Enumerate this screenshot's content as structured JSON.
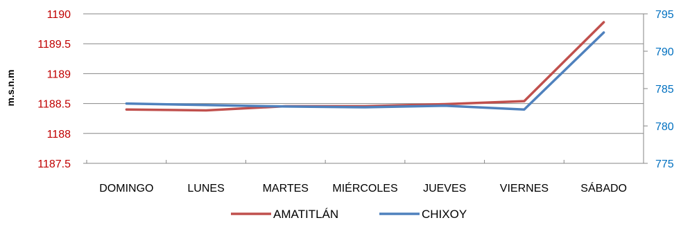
{
  "chart_data": {
    "type": "line",
    "categories": [
      "DOMINGO",
      "LUNES",
      "MARTES",
      "MIÉRCOLES",
      "JUEVES",
      "VIERNES",
      "SÁBADO"
    ],
    "ylabel": "m.s.n.m",
    "y_left": {
      "ticks": [
        "1187.5",
        "1188",
        "1188.5",
        "1189",
        "1189.5",
        "1190"
      ],
      "min": 1187.5,
      "max": 1190,
      "color": "#c00000"
    },
    "y_right": {
      "ticks": [
        "775",
        "780",
        "785",
        "790",
        "795"
      ],
      "min": 775,
      "max": 795,
      "color": "#0070c0"
    },
    "grid": true,
    "legend_position": "bottom",
    "series": [
      {
        "name": "AMATITLÁN",
        "axis": "left",
        "color": "#c0504d",
        "values": [
          1188.4,
          1188.385,
          1188.455,
          1188.455,
          1188.49,
          1188.54,
          1189.86
        ]
      },
      {
        "name": "CHIXOY",
        "axis": "right",
        "color": "#4f81bd",
        "values": [
          783.0,
          782.8,
          782.6,
          782.5,
          782.7,
          782.2,
          792.5
        ]
      }
    ]
  }
}
